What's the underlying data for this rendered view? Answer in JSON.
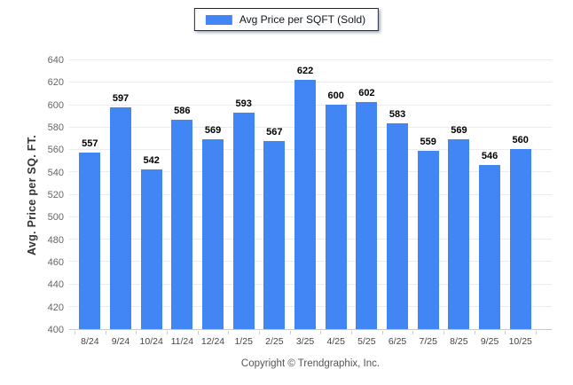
{
  "legend": {
    "label": "Avg Price per SQFT (Sold)",
    "swatch_color": "#4285f4"
  },
  "chart_data": {
    "type": "bar",
    "title": "",
    "series_name": "Avg Price per SQFT (Sold)",
    "categories": [
      "8/24",
      "9/24",
      "10/24",
      "11/24",
      "12/24",
      "1/25",
      "2/25",
      "3/25",
      "4/25",
      "5/25",
      "6/25",
      "7/25",
      "8/25",
      "9/25",
      "10/25"
    ],
    "values": [
      557,
      597,
      542,
      586,
      569,
      593,
      567,
      622,
      600,
      602,
      583,
      559,
      569,
      546,
      560
    ],
    "xlabel": "",
    "ylabel": "Avg. Price per SQ. FT.",
    "ylim": [
      400,
      640
    ],
    "ytick_step": 20,
    "yticks": [
      400,
      420,
      440,
      460,
      480,
      500,
      520,
      540,
      560,
      580,
      600,
      620,
      640
    ],
    "grid": true,
    "legend_position": "top-center",
    "bar_color": "#4285f4",
    "value_labels_shown": true
  },
  "footer": {
    "copyright": "Copyright © Trendgraphix, Inc."
  }
}
